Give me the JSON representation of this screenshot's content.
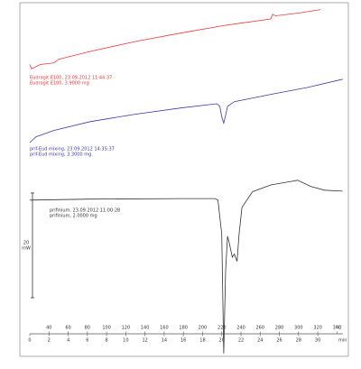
{
  "chart_data": {
    "type": "line",
    "x_label": "min",
    "x2_label": "°C",
    "xlim": [
      0,
      33
    ],
    "xticks": [
      0,
      2,
      4,
      6,
      8,
      10,
      12,
      14,
      16,
      18,
      20,
      22,
      24,
      26,
      28,
      30
    ],
    "x2lim": [
      20,
      350
    ],
    "x2ticks": [
      40,
      60,
      80,
      100,
      120,
      140,
      160,
      180,
      200,
      220,
      240,
      260,
      280,
      300,
      320,
      340
    ],
    "ylim": [
      -4,
      62
    ],
    "scale_bar": {
      "value": 20,
      "unit": "mW"
    },
    "series": [
      {
        "name": "Eudragit E100, 23.09.2012 11:44:37",
        "info": "Eudragit E100, 3.9000 mg",
        "color": "#e83a3a",
        "x": [
          0,
          0.19,
          1.1,
          2.5,
          3.0,
          6.3,
          11.0,
          15.7,
          20.4,
          25.1,
          25.3,
          25.6,
          27.9,
          30.3
        ],
        "y": [
          51.4,
          50.6,
          51.4,
          51.7,
          52.4,
          53.9,
          55.8,
          57.4,
          58.9,
          60.1,
          61.0,
          60.7,
          61.2,
          61.9
        ]
      },
      {
        "name": "prif-Eud mixing, 23.09.2012 14:35:37",
        "info": "prif-Eud mixing, 3.3000 mg",
        "color": "#3a3aa8",
        "x": [
          0,
          0.66,
          2.5,
          6.3,
          11.0,
          15.7,
          19.5,
          19.8,
          20.0,
          20.2,
          20.4,
          20.6,
          21.3,
          25.1,
          28.9,
          32.6
        ],
        "y": [
          36.5,
          37.6,
          38.8,
          40.5,
          41.9,
          43.1,
          43.9,
          43.4,
          41.4,
          40.2,
          41.7,
          43.4,
          44.3,
          45.7,
          47.0,
          48.6
        ]
      },
      {
        "name": "prifinium, 23.09.2012 11:00:28",
        "info": "prifinium, 2.0000 mg",
        "color": "#333333",
        "x": [
          0,
          6.3,
          15.7,
          19.3,
          19.6,
          20.0,
          20.2,
          20.4,
          20.6,
          20.8,
          21.1,
          21.3,
          21.6,
          21.8,
          22.1,
          23.2,
          25.1,
          27.0,
          27.9,
          29.3,
          30.7,
          32.6
        ],
        "y": [
          25.5,
          25.7,
          25.8,
          25.8,
          25.5,
          19.0,
          -3.8,
          12.1,
          18.6,
          17.2,
          14.6,
          15.2,
          13.8,
          19.0,
          24.1,
          27.1,
          28.4,
          29.0,
          29.3,
          28.1,
          27.4,
          27.2
        ]
      }
    ]
  }
}
